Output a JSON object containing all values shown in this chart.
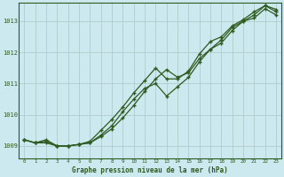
{
  "title": "Graphe pression niveau de la mer (hPa)",
  "bg_color": "#cce9f0",
  "grid_color": "#b0cccc",
  "line_color": "#2d5a1e",
  "xlim": [
    -0.5,
    23.5
  ],
  "ylim": [
    1008.6,
    1013.6
  ],
  "xticks": [
    0,
    1,
    2,
    3,
    4,
    5,
    6,
    7,
    8,
    9,
    10,
    11,
    12,
    13,
    14,
    15,
    16,
    17,
    18,
    19,
    20,
    21,
    22,
    23
  ],
  "yticks": [
    1009,
    1010,
    1011,
    1012,
    1013
  ],
  "series": [
    [
      1009.2,
      1009.1,
      1009.15,
      1009.0,
      1009.0,
      1009.05,
      1009.1,
      1009.3,
      1009.55,
      1009.9,
      1010.3,
      1010.75,
      1011.15,
      1011.45,
      1011.2,
      1011.35,
      1011.8,
      1012.1,
      1012.4,
      1012.8,
      1013.0,
      1013.2,
      1013.5,
      1013.38
    ],
    [
      1009.2,
      1009.1,
      1009.2,
      1009.0,
      1009.0,
      1009.05,
      1009.15,
      1009.5,
      1009.85,
      1010.25,
      1010.7,
      1011.1,
      1011.5,
      1011.15,
      1011.15,
      1011.4,
      1011.95,
      1012.35,
      1012.5,
      1012.85,
      1013.05,
      1013.3,
      1013.5,
      1013.3
    ],
    [
      1009.2,
      1009.1,
      1009.1,
      1009.0,
      1009.0,
      1009.05,
      1009.1,
      1009.35,
      1009.65,
      1010.1,
      1010.5,
      1010.85,
      1011.0,
      1010.6,
      1010.9,
      1011.2,
      1011.7,
      1012.1,
      1012.3,
      1012.7,
      1013.0,
      1013.1,
      1013.4,
      1013.2
    ]
  ]
}
